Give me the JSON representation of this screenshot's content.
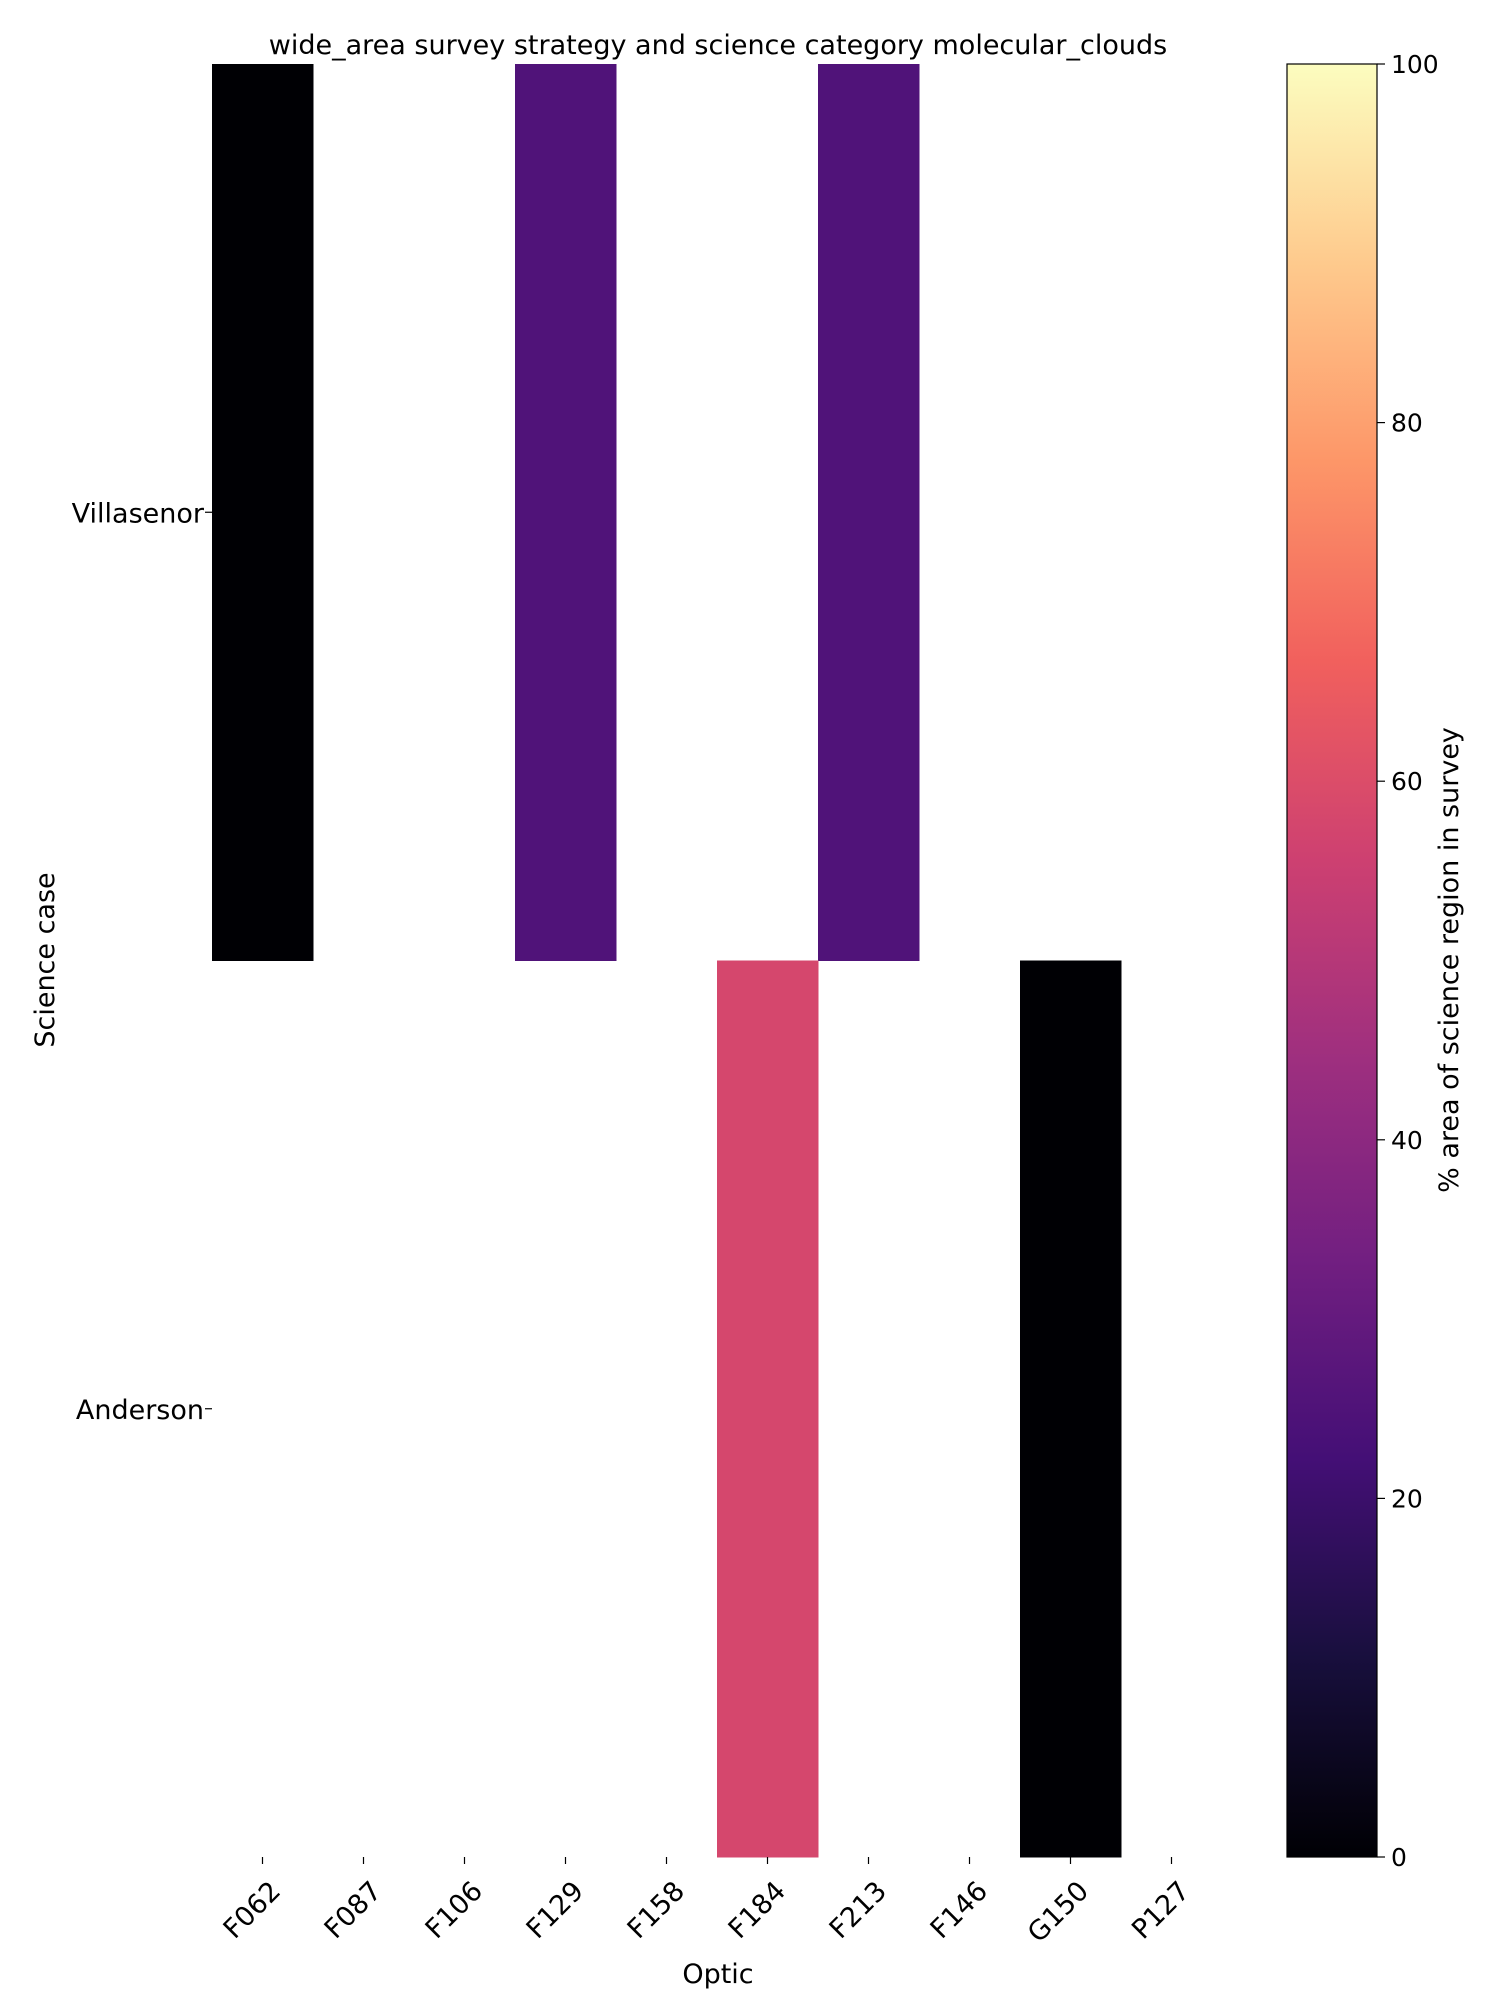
{
  "chart_data": {
    "type": "heatmap",
    "title": "wide_area survey strategy and science category molecular_clouds",
    "xlabel": "Optic",
    "ylabel": "Science case",
    "x_categories": [
      "F062",
      "F087",
      "F106",
      "F129",
      "F158",
      "F184",
      "F213",
      "F146",
      "G150",
      "P127"
    ],
    "y_categories": [
      "Villasenor",
      "Anderson"
    ],
    "values": [
      [
        0,
        null,
        null,
        25,
        null,
        null,
        25,
        null,
        null,
        null
      ],
      [
        null,
        null,
        null,
        null,
        null,
        58,
        null,
        null,
        0,
        null
      ]
    ],
    "colorbar": {
      "label": "% area of science region in survey",
      "range": [
        0,
        100
      ],
      "ticks": [
        0,
        20,
        40,
        60,
        80,
        100
      ],
      "colormap": "magma",
      "colormap_stops": [
        "#000004",
        "#180f3d",
        "#440f76",
        "#721f81",
        "#9e2f7f",
        "#cd4071",
        "#f1605d",
        "#fd9668",
        "#feca8d",
        "#fcfdbf"
      ]
    },
    "grid": false
  }
}
